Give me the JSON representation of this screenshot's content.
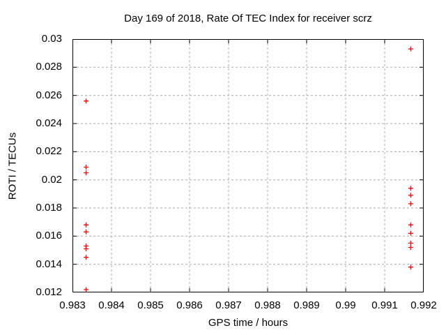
{
  "page": {
    "background": "#ffffff"
  },
  "chart_data": {
    "type": "scatter",
    "title": "Day 169 of 2018, Rate Of TEC Index for receiver scrz",
    "xlabel": "GPS time / hours",
    "ylabel": "ROTI / TECUs",
    "xlim": [
      0.983,
      0.992
    ],
    "ylim": [
      0.012,
      0.03
    ],
    "x_ticks": [
      {
        "v": 0.983,
        "label": "0.983"
      },
      {
        "v": 0.984,
        "label": "0.984"
      },
      {
        "v": 0.985,
        "label": "0.985"
      },
      {
        "v": 0.986,
        "label": "0.986"
      },
      {
        "v": 0.987,
        "label": "0.987"
      },
      {
        "v": 0.988,
        "label": "0.988"
      },
      {
        "v": 0.989,
        "label": "0.989"
      },
      {
        "v": 0.99,
        "label": "0.99"
      },
      {
        "v": 0.991,
        "label": "0.991"
      },
      {
        "v": 0.992,
        "label": "0.992"
      }
    ],
    "y_ticks": [
      {
        "v": 0.012,
        "label": "0.012"
      },
      {
        "v": 0.014,
        "label": "0.014"
      },
      {
        "v": 0.016,
        "label": "0.016"
      },
      {
        "v": 0.018,
        "label": "0.018"
      },
      {
        "v": 0.02,
        "label": "0.02"
      },
      {
        "v": 0.022,
        "label": "0.022"
      },
      {
        "v": 0.024,
        "label": "0.024"
      },
      {
        "v": 0.026,
        "label": "0.026"
      },
      {
        "v": 0.028,
        "label": "0.028"
      },
      {
        "v": 0.03,
        "label": "0.03"
      }
    ],
    "grid": true,
    "legend": "none",
    "marker": "plus",
    "marker_size": 7,
    "marker_color": "#ff0000",
    "grid_color": "#a8a8a8",
    "axis_color": "#000000",
    "series": [
      {
        "points": [
          [
            0.98335,
            0.0256
          ],
          [
            0.98335,
            0.0209
          ],
          [
            0.98335,
            0.0205
          ],
          [
            0.98335,
            0.0168
          ],
          [
            0.98335,
            0.0163
          ],
          [
            0.98335,
            0.0153
          ],
          [
            0.98335,
            0.0151
          ],
          [
            0.98335,
            0.0145
          ],
          [
            0.98335,
            0.0122
          ],
          [
            0.99167,
            0.0293
          ],
          [
            0.99167,
            0.0194
          ],
          [
            0.99167,
            0.0189
          ],
          [
            0.99167,
            0.0183
          ],
          [
            0.99167,
            0.0168
          ],
          [
            0.99167,
            0.0162
          ],
          [
            0.99167,
            0.0155
          ],
          [
            0.99167,
            0.0152
          ],
          [
            0.99167,
            0.0138
          ]
        ]
      }
    ]
  }
}
